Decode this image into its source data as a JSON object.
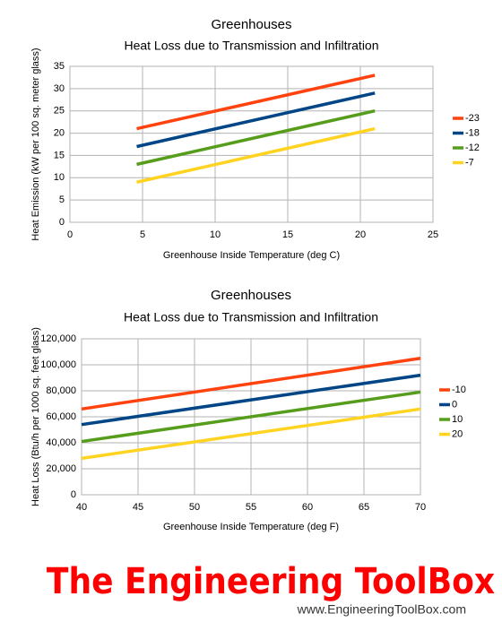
{
  "chart_data": [
    {
      "type": "line",
      "title": "Greenhouses",
      "subtitle": "Heat Loss due to Transmission and Infiltration",
      "x_label": "Greenhouse Inside Temperature (deg C)",
      "y_label": "Heat Emission (kW per 100 sq. meter glass)",
      "x": [
        4.6,
        21
      ],
      "xlim": [
        0,
        25
      ],
      "xticks": [
        0,
        5,
        10,
        15,
        20,
        25
      ],
      "ylim": [
        0,
        35
      ],
      "yticks": [
        0,
        5,
        10,
        15,
        20,
        25,
        30,
        35
      ],
      "grid": true,
      "legend": "right",
      "series": [
        {
          "name": "-23",
          "color": "#ff420e",
          "values": [
            21,
            33
          ]
        },
        {
          "name": "-18",
          "color": "#004586",
          "values": [
            17,
            29
          ]
        },
        {
          "name": "-12",
          "color": "#579d1c",
          "values": [
            13,
            25
          ]
        },
        {
          "name": "-7",
          "color": "#ffd320",
          "values": [
            9,
            21
          ]
        }
      ]
    },
    {
      "type": "line",
      "title": "Greenhouses",
      "subtitle": "Heat Loss due to Transmission and Infiltration",
      "x_label": "Greenhouse Inside Temperature (deg F)",
      "y_label": "Heat Loss (Btu/h per 1000 sq.  feet glass)",
      "x": [
        40,
        70
      ],
      "xlim": [
        40,
        70
      ],
      "xticks": [
        40,
        45,
        50,
        55,
        60,
        65,
        70
      ],
      "ylim": [
        0,
        120000
      ],
      "yticks": [
        0,
        {
          "value": 20000,
          "label": "20,000"
        },
        {
          "value": 40000,
          "label": "40,000"
        },
        {
          "value": 60000,
          "label": "60,000"
        },
        {
          "value": 80000,
          "label": "80,000"
        },
        {
          "value": 100000,
          "label": "100,000"
        },
        {
          "value": 120000,
          "label": "120,000"
        }
      ],
      "grid": true,
      "legend": "right",
      "series": [
        {
          "name": "-10",
          "color": "#ff420e",
          "values": [
            66000,
            105000
          ]
        },
        {
          "name": "0",
          "color": "#004586",
          "values": [
            54000,
            92000
          ]
        },
        {
          "name": "10",
          "color": "#579d1c",
          "values": [
            41000,
            79000
          ]
        },
        {
          "name": "20",
          "color": "#ffd320",
          "values": [
            28000,
            66000
          ]
        }
      ]
    }
  ],
  "branding": {
    "logo": "The Engineering ToolBox",
    "url": "www.EngineeringToolBox.com"
  }
}
